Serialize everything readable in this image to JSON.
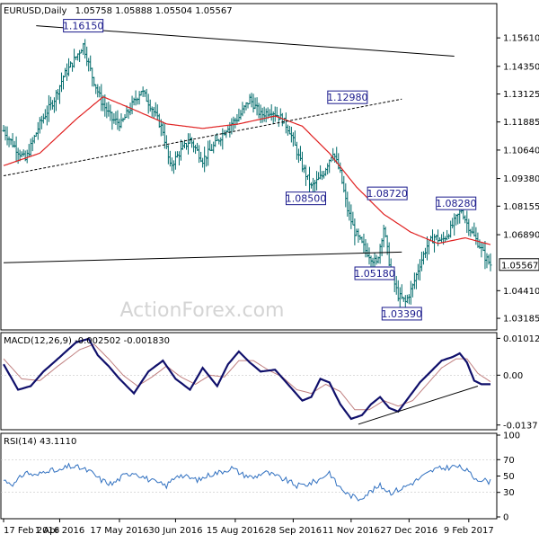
{
  "chart_data": [
    {
      "type": "ohlc",
      "title": "EURUSD,Daily",
      "ohlc_readout": "1.05758 1.05888 1.05504 1.05567",
      "last_price_label": "1.05567",
      "ylim": [
        1.0275,
        1.1705
      ],
      "y_ticks": [
        "1.15610",
        "1.14350",
        "1.13125",
        "1.11885",
        "1.10640",
        "1.09380",
        "1.08155",
        "1.06890",
        "1.04410",
        "1.03185"
      ],
      "x_ticks": [
        "17 Feb 2016",
        "1 Apr 2016",
        "17 May 2016",
        "30 Jun 2016",
        "15 Aug 2016",
        "28 Sep 2016",
        "11 Nov 2016",
        "27 Dec 2016",
        "9 Feb 2017"
      ],
      "x_tick_index": [
        0,
        31,
        64,
        95,
        128,
        160,
        192,
        224,
        257
      ],
      "bars_count": 270,
      "close_anchors": [
        [
          0,
          1.115
        ],
        [
          6,
          1.108
        ],
        [
          12,
          1.102
        ],
        [
          20,
          1.118
        ],
        [
          28,
          1.129
        ],
        [
          33,
          1.139
        ],
        [
          38,
          1.145
        ],
        [
          44,
          1.153
        ],
        [
          49,
          1.139
        ],
        [
          54,
          1.128
        ],
        [
          60,
          1.12
        ],
        [
          65,
          1.118
        ],
        [
          70,
          1.125
        ],
        [
          76,
          1.133
        ],
        [
          82,
          1.125
        ],
        [
          88,
          1.115
        ],
        [
          92,
          1.099
        ],
        [
          97,
          1.105
        ],
        [
          103,
          1.111
        ],
        [
          110,
          1.102
        ],
        [
          117,
          1.109
        ],
        [
          124,
          1.117
        ],
        [
          130,
          1.121
        ],
        [
          136,
          1.129
        ],
        [
          142,
          1.122
        ],
        [
          148,
          1.124
        ],
        [
          154,
          1.12
        ],
        [
          158,
          1.115
        ],
        [
          164,
          1.101
        ],
        [
          170,
          1.09
        ],
        [
          176,
          1.095
        ],
        [
          182,
          1.106
        ],
        [
          186,
          1.096
        ],
        [
          190,
          1.08
        ],
        [
          194,
          1.07
        ],
        [
          200,
          1.062
        ],
        [
          206,
          1.056
        ],
        [
          210,
          1.072
        ],
        [
          214,
          1.052
        ],
        [
          218,
          1.042
        ],
        [
          222,
          1.039
        ],
        [
          226,
          1.046
        ],
        [
          230,
          1.056
        ],
        [
          234,
          1.064
        ],
        [
          238,
          1.068
        ],
        [
          242,
          1.066
        ],
        [
          246,
          1.07
        ],
        [
          250,
          1.076
        ],
        [
          253,
          1.08
        ],
        [
          256,
          1.074
        ],
        [
          260,
          1.068
        ],
        [
          263,
          1.064
        ],
        [
          266,
          1.059
        ],
        [
          269,
          1.0557
        ]
      ],
      "ma_anchors": [
        [
          0,
          1.0995
        ],
        [
          20,
          1.105
        ],
        [
          40,
          1.12
        ],
        [
          55,
          1.13
        ],
        [
          70,
          1.125
        ],
        [
          90,
          1.118
        ],
        [
          110,
          1.116
        ],
        [
          130,
          1.118
        ],
        [
          150,
          1.1215
        ],
        [
          165,
          1.117
        ],
        [
          180,
          1.105
        ],
        [
          195,
          1.09
        ],
        [
          210,
          1.078
        ],
        [
          225,
          1.07
        ],
        [
          240,
          1.065
        ],
        [
          255,
          1.0675
        ],
        [
          269,
          1.0645
        ]
      ],
      "trendlines": [
        {
          "from": [
            18,
            1.1615
          ],
          "to": [
            249,
            1.148
          ]
        },
        {
          "from": [
            0,
            1.095
          ],
          "to": [
            220,
            1.129
          ]
        },
        {
          "from": [
            0,
            1.0565
          ],
          "to": [
            220,
            1.0612
          ]
        }
      ],
      "callouts": [
        {
          "label": "1.16150",
          "x": 44,
          "y": 1.1615
        },
        {
          "label": "1.12980",
          "x": 190,
          "y": 1.1298
        },
        {
          "label": "1.08500",
          "x": 167,
          "y": 1.085
        },
        {
          "label": "1.08720",
          "x": 212,
          "y": 1.0872
        },
        {
          "label": "1.08280",
          "x": 250,
          "y": 1.0828
        },
        {
          "label": "1.05180",
          "x": 205,
          "y": 1.0518
        },
        {
          "label": "1.03390",
          "x": 220,
          "y": 1.0339
        }
      ],
      "colors": {
        "bars": "#006b6b",
        "ma": "#e02020",
        "trendline": "#000000",
        "callout": "#1a1a8c"
      },
      "watermark": "ActionForex.com"
    },
    {
      "type": "line",
      "title": "MACD(12,26,9) -0.002502 -0.001830",
      "ylim": [
        -0.0145,
        0.0112
      ],
      "y_ticks": [
        "0.010122",
        "0.00",
        "-0.0137"
      ],
      "y_tick_values": [
        0.010122,
        0.0,
        -0.0137
      ],
      "macd_anchors": [
        [
          0,
          0.003
        ],
        [
          8,
          -0.004
        ],
        [
          15,
          -0.003
        ],
        [
          22,
          0.001
        ],
        [
          30,
          0.0045
        ],
        [
          40,
          0.009
        ],
        [
          47,
          0.01
        ],
        [
          52,
          0.0055
        ],
        [
          58,
          0.0025
        ],
        [
          64,
          -0.001
        ],
        [
          72,
          -0.005
        ],
        [
          80,
          0.001
        ],
        [
          88,
          0.004
        ],
        [
          95,
          -0.001
        ],
        [
          103,
          -0.004
        ],
        [
          110,
          0.002
        ],
        [
          118,
          -0.003
        ],
        [
          124,
          0.003
        ],
        [
          130,
          0.0065
        ],
        [
          136,
          0.0035
        ],
        [
          142,
          0.001
        ],
        [
          150,
          0.0015
        ],
        [
          158,
          -0.003
        ],
        [
          165,
          -0.007
        ],
        [
          170,
          -0.006
        ],
        [
          175,
          -0.001
        ],
        [
          180,
          -0.002
        ],
        [
          186,
          -0.008
        ],
        [
          192,
          -0.012
        ],
        [
          198,
          -0.011
        ],
        [
          203,
          -0.008
        ],
        [
          208,
          -0.006
        ],
        [
          213,
          -0.009
        ],
        [
          218,
          -0.01
        ],
        [
          224,
          -0.006
        ],
        [
          230,
          -0.002
        ],
        [
          236,
          0.001
        ],
        [
          242,
          0.004
        ],
        [
          248,
          0.005
        ],
        [
          252,
          0.006
        ],
        [
          256,
          0.0035
        ],
        [
          260,
          -0.0015
        ],
        [
          264,
          -0.0025
        ],
        [
          269,
          -0.0025
        ]
      ],
      "signal_anchors": [
        [
          0,
          0.0045
        ],
        [
          10,
          -0.001
        ],
        [
          20,
          -0.0015
        ],
        [
          30,
          0.0025
        ],
        [
          42,
          0.007
        ],
        [
          50,
          0.0085
        ],
        [
          58,
          0.0045
        ],
        [
          66,
          0.0
        ],
        [
          74,
          -0.003
        ],
        [
          82,
          -0.0005
        ],
        [
          90,
          0.0025
        ],
        [
          98,
          -0.0005
        ],
        [
          106,
          -0.0025
        ],
        [
          114,
          0.0
        ],
        [
          122,
          -0.0005
        ],
        [
          130,
          0.004
        ],
        [
          138,
          0.004
        ],
        [
          146,
          0.0015
        ],
        [
          154,
          -0.0005
        ],
        [
          162,
          -0.004
        ],
        [
          170,
          -0.005
        ],
        [
          178,
          -0.0025
        ],
        [
          186,
          -0.0045
        ],
        [
          194,
          -0.0095
        ],
        [
          202,
          -0.0095
        ],
        [
          210,
          -0.007
        ],
        [
          218,
          -0.0085
        ],
        [
          226,
          -0.007
        ],
        [
          234,
          -0.0025
        ],
        [
          242,
          0.002
        ],
        [
          250,
          0.0045
        ],
        [
          256,
          0.0045
        ],
        [
          262,
          0.0005
        ],
        [
          269,
          -0.0018
        ]
      ],
      "trendline": {
        "from": [
          196,
          -0.0135
        ],
        "to": [
          262,
          -0.003
        ]
      },
      "colors": {
        "macd": "#10106b",
        "signal": "#c08080"
      }
    },
    {
      "type": "line",
      "title": "RSI(14) 43.1110",
      "ylim": [
        0,
        100
      ],
      "y_ticks": [
        "100",
        "70",
        "50",
        "30",
        "0"
      ],
      "y_tick_values": [
        100,
        70,
        50,
        30,
        0
      ],
      "levels": [
        70,
        30
      ],
      "rsi_anchors": [
        [
          0,
          45
        ],
        [
          6,
          40
        ],
        [
          12,
          55
        ],
        [
          18,
          50
        ],
        [
          24,
          58
        ],
        [
          30,
          55
        ],
        [
          36,
          62
        ],
        [
          42,
          60
        ],
        [
          48,
          55
        ],
        [
          54,
          45
        ],
        [
          60,
          40
        ],
        [
          66,
          50
        ],
        [
          72,
          55
        ],
        [
          78,
          48
        ],
        [
          84,
          42
        ],
        [
          90,
          38
        ],
        [
          96,
          52
        ],
        [
          102,
          48
        ],
        [
          108,
          45
        ],
        [
          114,
          52
        ],
        [
          120,
          55
        ],
        [
          126,
          60
        ],
        [
          132,
          52
        ],
        [
          138,
          48
        ],
        [
          144,
          55
        ],
        [
          150,
          50
        ],
        [
          156,
          45
        ],
        [
          162,
          38
        ],
        [
          168,
          40
        ],
        [
          174,
          45
        ],
        [
          180,
          55
        ],
        [
          184,
          40
        ],
        [
          190,
          28
        ],
        [
          196,
          22
        ],
        [
          202,
          30
        ],
        [
          208,
          38
        ],
        [
          214,
          30
        ],
        [
          220,
          35
        ],
        [
          226,
          42
        ],
        [
          232,
          50
        ],
        [
          238,
          58
        ],
        [
          244,
          60
        ],
        [
          250,
          62
        ],
        [
          255,
          58
        ],
        [
          260,
          48
        ],
        [
          265,
          45
        ],
        [
          269,
          43
        ]
      ],
      "colors": {
        "rsi": "#3070c0",
        "levels": "#a0a0a0"
      }
    }
  ]
}
